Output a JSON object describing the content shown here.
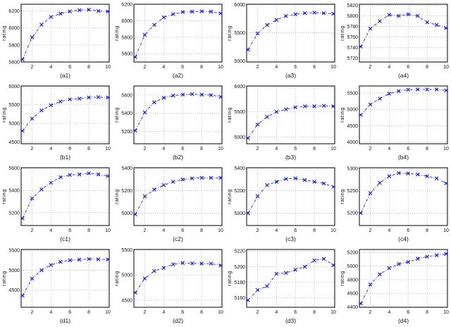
{
  "figure": {
    "accent_color": "#2222cc",
    "grid_color": "#a8a8a8",
    "axis_color": "#000000",
    "marker": "x",
    "line_style": "dash-dot"
  },
  "chart_data": [
    {
      "type": "line",
      "label": "(a1)",
      "ylabel": "rating",
      "x": [
        1,
        2,
        3,
        4,
        5,
        6,
        7,
        8,
        9,
        10
      ],
      "values": [
        5630,
        5890,
        6040,
        6130,
        6170,
        6195,
        6210,
        6215,
        6200,
        6195
      ],
      "xticks": [
        2,
        4,
        6,
        8,
        10
      ],
      "yticks": [
        5600,
        5800,
        6000,
        6200
      ],
      "xlim": [
        0.85,
        10.15
      ],
      "ylim": [
        5600,
        6280
      ]
    },
    {
      "type": "line",
      "label": "(a2)",
      "ylabel": "rating",
      "x": [
        1,
        2,
        3,
        4,
        5,
        6,
        7,
        8,
        9,
        10
      ],
      "values": [
        5560,
        5830,
        5950,
        6040,
        6080,
        6105,
        6110,
        6115,
        6110,
        6090
      ],
      "xticks": [
        2,
        4,
        6,
        8,
        10
      ],
      "yticks": [
        5600,
        5800,
        6000,
        6200
      ],
      "xlim": [
        0.85,
        10.15
      ],
      "ylim": [
        5500,
        6200
      ]
    },
    {
      "type": "line",
      "label": "(a3)",
      "ylabel": "rating",
      "x": [
        1,
        2,
        3,
        4,
        5,
        6,
        7,
        8,
        9,
        10
      ],
      "values": [
        5200,
        5490,
        5640,
        5730,
        5800,
        5830,
        5850,
        5860,
        5850,
        5840
      ],
      "xticks": [
        2,
        4,
        6,
        8,
        10
      ],
      "yticks": [
        5000,
        5500,
        6000
      ],
      "xlim": [
        0.85,
        10.15
      ],
      "ylim": [
        4980,
        6010
      ]
    },
    {
      "type": "line",
      "label": "(a4)",
      "ylabel": "rating",
      "x": [
        1,
        2,
        3,
        4,
        5,
        6,
        7,
        8,
        9,
        10
      ],
      "values": [
        5742,
        5776,
        5790,
        5802,
        5800,
        5803,
        5800,
        5788,
        5783,
        5777
      ],
      "xticks": [
        2,
        4,
        6,
        8,
        10
      ],
      "yticks": [
        5720,
        5740,
        5760,
        5780,
        5800,
        5820
      ],
      "xlim": [
        0.85,
        10.15
      ],
      "ylim": [
        5713,
        5822
      ]
    },
    {
      "type": "line",
      "label": "(b1)",
      "ylabel": "rating",
      "x": [
        1,
        2,
        3,
        4,
        5,
        6,
        7,
        8,
        9,
        10
      ],
      "values": [
        4800,
        5130,
        5350,
        5490,
        5590,
        5650,
        5670,
        5700,
        5710,
        5700
      ],
      "xticks": [
        2,
        4,
        6,
        8,
        10
      ],
      "yticks": [
        4500,
        5000,
        5500,
        6000
      ],
      "xlim": [
        0.85,
        10.15
      ],
      "ylim": [
        4450,
        6010
      ]
    },
    {
      "type": "line",
      "label": "(b2)",
      "ylabel": "rating",
      "x": [
        1,
        2,
        3,
        4,
        5,
        6,
        7,
        8,
        9,
        10
      ],
      "values": [
        5210,
        5410,
        5520,
        5570,
        5595,
        5605,
        5610,
        5605,
        5600,
        5580
      ],
      "xticks": [
        2,
        4,
        6,
        8,
        10
      ],
      "yticks": [
        5200,
        5400,
        5600
      ],
      "xlim": [
        0.85,
        10.15
      ],
      "ylim": [
        5065,
        5700
      ]
    },
    {
      "type": "line",
      "label": "(b3)",
      "ylabel": "rating",
      "x": [
        1,
        2,
        3,
        4,
        5,
        6,
        7,
        8,
        9,
        10
      ],
      "values": [
        4980,
        5250,
        5400,
        5500,
        5550,
        5590,
        5610,
        5610,
        5620,
        5610
      ],
      "xticks": [
        2,
        4,
        6,
        8,
        10
      ],
      "yticks": [
        5000,
        5500,
        6000
      ],
      "xlim": [
        0.85,
        10.15
      ],
      "ylim": [
        4870,
        6010
      ]
    },
    {
      "type": "line",
      "label": "(b4)",
      "ylabel": "rating",
      "x": [
        1,
        2,
        3,
        4,
        5,
        6,
        7,
        8,
        9,
        10
      ],
      "values": [
        4830,
        5150,
        5330,
        5480,
        5560,
        5600,
        5610,
        5610,
        5610,
        5580
      ],
      "xticks": [
        2,
        4,
        6,
        8,
        10
      ],
      "yticks": [
        4000,
        4500,
        5000,
        5500
      ],
      "xlim": [
        0.85,
        10.15
      ],
      "ylim": [
        3950,
        5715
      ]
    },
    {
      "type": "line",
      "label": "(c1)",
      "ylabel": "rating",
      "x": [
        1,
        2,
        3,
        4,
        5,
        6,
        7,
        8,
        9,
        10
      ],
      "values": [
        5150,
        5330,
        5410,
        5470,
        5520,
        5540,
        5545,
        5555,
        5545,
        5530
      ],
      "xticks": [
        2,
        4,
        6,
        8,
        10
      ],
      "yticks": [
        5200,
        5400,
        5600
      ],
      "xlim": [
        0.85,
        10.15
      ],
      "ylim": [
        5085,
        5605
      ]
    },
    {
      "type": "line",
      "label": "(c2)",
      "ylabel": "rating",
      "x": [
        1,
        2,
        3,
        4,
        5,
        6,
        7,
        8,
        9,
        10
      ],
      "values": [
        4990,
        5150,
        5210,
        5250,
        5280,
        5300,
        5310,
        5315,
        5315,
        5315
      ],
      "xticks": [
        2,
        4,
        6,
        8,
        10
      ],
      "yticks": [
        5000,
        5200,
        5400
      ],
      "xlim": [
        0.85,
        10.15
      ],
      "ylim": [
        4890,
        5405
      ]
    },
    {
      "type": "line",
      "label": "(c3)",
      "ylabel": "rating",
      "x": [
        1,
        2,
        3,
        4,
        5,
        6,
        7,
        8,
        9,
        10
      ],
      "values": [
        5000,
        5150,
        5250,
        5280,
        5305,
        5310,
        5295,
        5280,
        5265,
        5235
      ],
      "xticks": [
        2,
        4,
        6,
        8,
        10
      ],
      "yticks": [
        5000,
        5200,
        5400
      ],
      "xlim": [
        0.85,
        10.15
      ],
      "ylim": [
        4890,
        5405
      ]
    },
    {
      "type": "line",
      "label": "(c4)",
      "ylabel": "rating",
      "x": [
        1,
        2,
        3,
        4,
        5,
        6,
        7,
        8,
        9,
        10
      ],
      "values": [
        5200,
        5245,
        5268,
        5283,
        5290,
        5289,
        5287,
        5283,
        5278,
        5267
      ],
      "xticks": [
        2,
        4,
        6,
        8,
        10
      ],
      "yticks": [
        5200,
        5250,
        5300
      ],
      "xlim": [
        0.85,
        10.15
      ],
      "ylim": [
        5172,
        5302
      ]
    },
    {
      "type": "line",
      "label": "(d1)",
      "ylabel": "rating",
      "x": [
        1,
        2,
        3,
        4,
        5,
        6,
        7,
        8,
        9,
        10
      ],
      "values": [
        4360,
        4790,
        5000,
        5130,
        5210,
        5250,
        5265,
        5280,
        5275,
        5270
      ],
      "xticks": [
        2,
        4,
        6,
        8,
        10
      ],
      "yticks": [
        4500,
        5000,
        5500
      ],
      "xlim": [
        0.85,
        10.15
      ],
      "ylim": [
        4070,
        5520
      ]
    },
    {
      "type": "line",
      "label": "(d2)",
      "ylabel": "rating",
      "x": [
        1,
        2,
        3,
        4,
        5,
        6,
        7,
        8,
        9,
        10
      ],
      "values": [
        4650,
        4930,
        5080,
        5140,
        5210,
        5240,
        5230,
        5225,
        5225,
        5190
      ],
      "xticks": [
        2,
        4,
        6,
        8,
        10
      ],
      "yticks": [
        4500,
        5000,
        5500
      ],
      "xlim": [
        0.85,
        10.15
      ],
      "ylim": [
        4360,
        5505
      ]
    },
    {
      "type": "line",
      "label": "(d3)",
      "ylabel": "rating",
      "x": [
        1,
        2,
        3,
        4,
        5,
        6,
        7,
        8,
        9,
        10
      ],
      "values": [
        5157,
        5170,
        5175,
        5191,
        5192,
        5196,
        5200,
        5208,
        5210,
        5202
      ],
      "xticks": [
        2,
        4,
        6,
        8,
        10
      ],
      "yticks": [
        5160,
        5180,
        5200,
        5220
      ],
      "xlim": [
        0.85,
        10.15
      ],
      "ylim": [
        5148,
        5222
      ]
    },
    {
      "type": "line",
      "label": "(d4)",
      "ylabel": "rating",
      "x": [
        1,
        2,
        3,
        4,
        5,
        6,
        7,
        8,
        9,
        10
      ],
      "values": [
        4450,
        4730,
        4880,
        4970,
        5030,
        5060,
        5110,
        5140,
        5160,
        5180
      ],
      "xticks": [
        2,
        4,
        6,
        8,
        10
      ],
      "yticks": [
        4400,
        4600,
        4800,
        5000,
        5200
      ],
      "xlim": [
        0.85,
        10.15
      ],
      "ylim": [
        4395,
        5245
      ]
    }
  ]
}
